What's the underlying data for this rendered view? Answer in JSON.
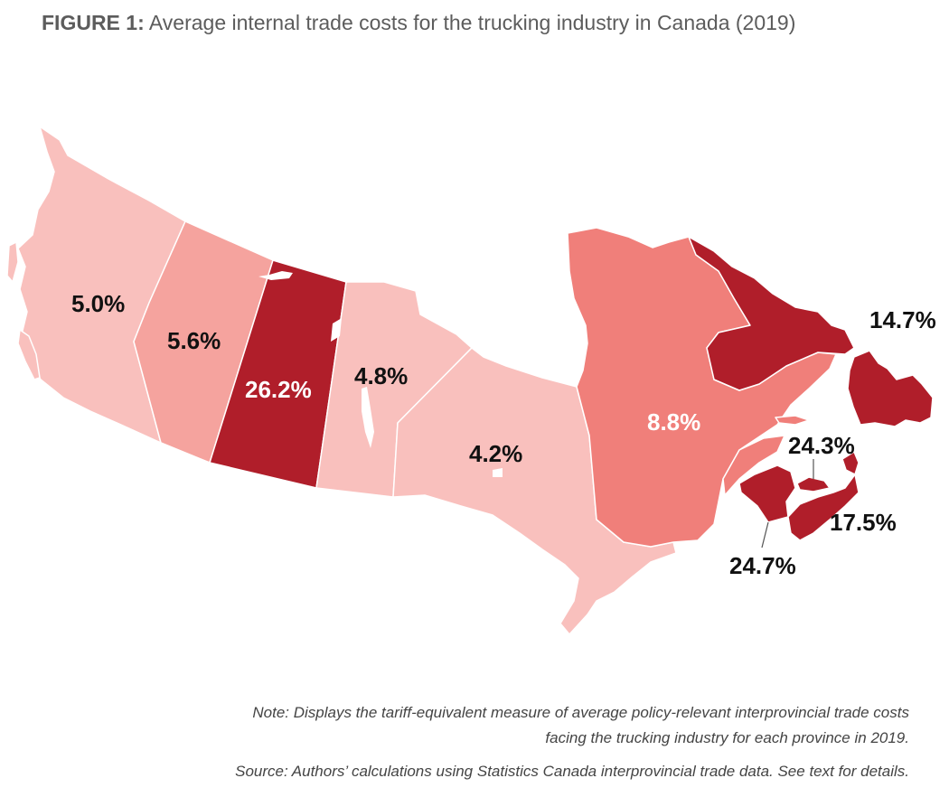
{
  "title": {
    "prefix": "FIGURE 1:",
    "text": " Average internal trade costs for the trucking industry in Canada (2019)"
  },
  "colors": {
    "lightest": "#f9c0bd",
    "light": "#f5a39e",
    "medium": "#f07f7a",
    "dark": "#b01e2a",
    "border": "#ffffff"
  },
  "provinces": [
    {
      "id": "BC",
      "value": "5.0%"
    },
    {
      "id": "AB",
      "value": "5.6%"
    },
    {
      "id": "SK",
      "value": "26.2%"
    },
    {
      "id": "MB",
      "value": "4.8%"
    },
    {
      "id": "ON",
      "value": "4.2%"
    },
    {
      "id": "QC",
      "value": "8.8%"
    },
    {
      "id": "NL",
      "value": "14.7%"
    },
    {
      "id": "PE",
      "value": "24.3%"
    },
    {
      "id": "NS",
      "value": "17.5%"
    },
    {
      "id": "NB",
      "value": "24.7%"
    }
  ],
  "note": {
    "line1": "Note: Displays the tariff-equivalent measure of average policy-relevant interprovincial trade costs",
    "line2": "facing the trucking industry for each province in 2019.",
    "source": "Source: Authors’ calculations using Statistics Canada interprovincial trade data. See text for details."
  }
}
